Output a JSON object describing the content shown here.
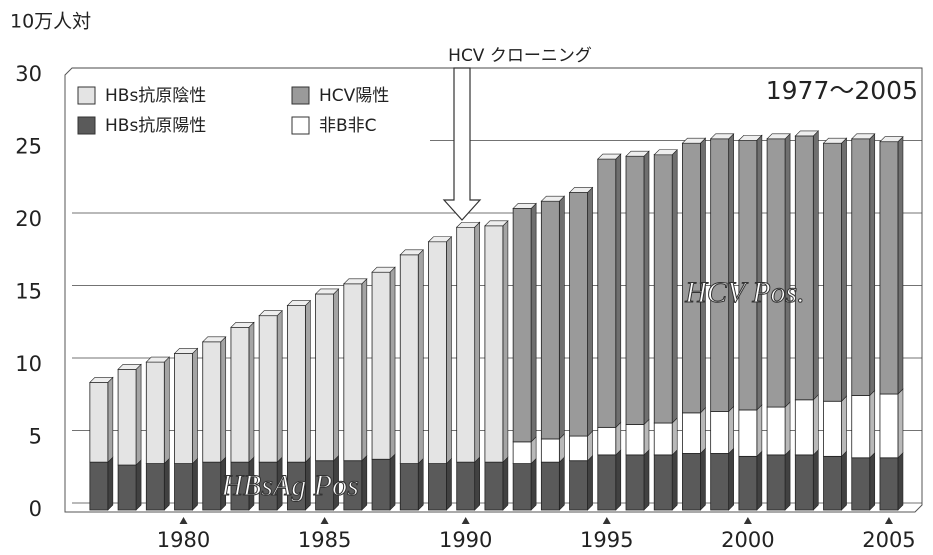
{
  "chart_data": {
    "type": "stacked_bar",
    "y_label": "10万人対",
    "annotations": [
      "HCV クローニング",
      "1977〜2005",
      "HCV Pos.",
      "HBsAg Pos"
    ],
    "x": [
      1977,
      1978,
      1979,
      1980,
      1981,
      1982,
      1983,
      1984,
      1985,
      1986,
      1987,
      1988,
      1989,
      1990,
      1991,
      1992,
      1993,
      1994,
      1995,
      1996,
      1997,
      1998,
      1999,
      2000,
      2001,
      2002,
      2003,
      2004,
      2005
    ],
    "xlim": [
      1975.8,
      2006.1
    ],
    "xticks": [
      1980,
      1985,
      1990,
      1995,
      2000,
      2005
    ],
    "ylim": [
      0,
      30
    ],
    "yticks": [
      0,
      5,
      10,
      15,
      20,
      25,
      30
    ],
    "grid": true,
    "series": [
      {
        "name": "HBs抗原陽性",
        "color": "#5a5a5a",
        "values": [
          3.3,
          3.1,
          3.2,
          3.2,
          3.3,
          3.3,
          3.3,
          3.3,
          3.4,
          3.4,
          3.5,
          3.2,
          3.2,
          3.3,
          3.3,
          3.2,
          3.3,
          3.4,
          3.8,
          3.8,
          3.8,
          3.9,
          3.9,
          3.7,
          3.8,
          3.8,
          3.7,
          3.6,
          3.6
        ]
      },
      {
        "name": "非B非C",
        "color": "#ffffff",
        "values": [
          null,
          null,
          null,
          null,
          null,
          null,
          null,
          null,
          null,
          null,
          null,
          null,
          null,
          null,
          null,
          1.5,
          1.6,
          1.7,
          1.9,
          2.1,
          2.2,
          2.8,
          2.9,
          3.2,
          3.3,
          3.8,
          3.8,
          4.3,
          4.4
        ]
      },
      {
        "name": "HBs抗原陰性",
        "color": "#e4e4e4",
        "values": [
          5.5,
          6.6,
          7.0,
          7.6,
          8.3,
          9.3,
          10.1,
          10.8,
          11.5,
          12.2,
          12.9,
          14.4,
          15.3,
          16.2,
          16.3,
          null,
          null,
          null,
          null,
          null,
          null,
          null,
          null,
          null,
          null,
          null,
          null,
          null,
          null
        ]
      },
      {
        "name": "HCV陽性",
        "color": "#9a9a9a",
        "values": [
          null,
          null,
          null,
          null,
          null,
          null,
          null,
          null,
          null,
          null,
          null,
          null,
          null,
          null,
          null,
          16.1,
          16.4,
          16.8,
          18.5,
          18.5,
          18.5,
          18.6,
          18.8,
          18.6,
          18.5,
          18.2,
          17.8,
          17.7,
          17.4
        ]
      }
    ]
  }
}
